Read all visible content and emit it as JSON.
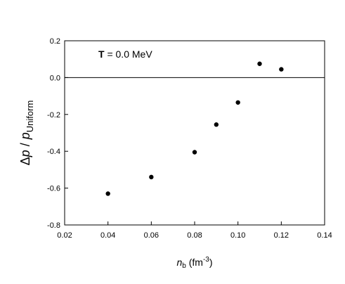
{
  "chart_data": {
    "type": "scatter",
    "annotation": {
      "bold": "T",
      "rest": " = 0.0 MeV"
    },
    "xlabel": {
      "base": "n",
      "sub": "b",
      "unit_prefix": " (fm",
      "unit_sup": "-3",
      "unit_suffix": ")"
    },
    "ylabel": {
      "delta": "Δ",
      "p1": "p",
      "slash": " / ",
      "p2": "p",
      "sub": "Uniform"
    },
    "xlim": [
      0.02,
      0.14
    ],
    "ylim": [
      -0.8,
      0.2
    ],
    "xticks": [
      "0.02",
      "0.04",
      "0.06",
      "0.08",
      "0.10",
      "0.12",
      "0.14"
    ],
    "yticks": [
      "0.2",
      "0.0",
      "-0.2",
      "-0.4",
      "-0.6",
      "-0.8"
    ],
    "reference_line_y": 0.0,
    "grid": false,
    "legend": "none",
    "marker_color": "#000000",
    "points": [
      {
        "x": 0.04,
        "y": -0.63
      },
      {
        "x": 0.06,
        "y": -0.54
      },
      {
        "x": 0.08,
        "y": -0.405
      },
      {
        "x": 0.09,
        "y": -0.255
      },
      {
        "x": 0.1,
        "y": -0.135
      },
      {
        "x": 0.11,
        "y": 0.075
      },
      {
        "x": 0.12,
        "y": 0.045
      }
    ]
  }
}
